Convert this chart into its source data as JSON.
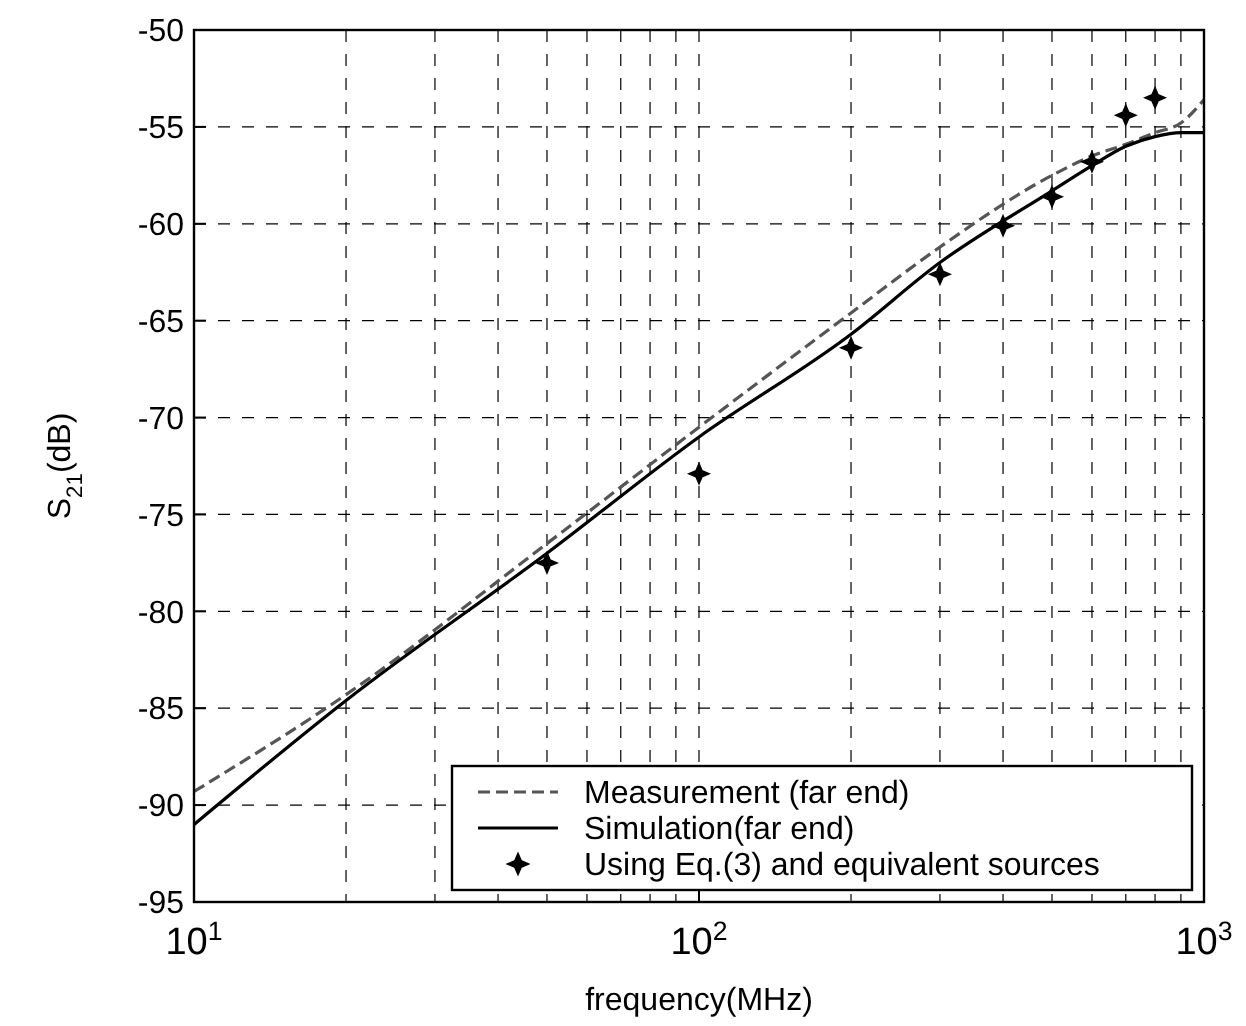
{
  "chart_data": {
    "type": "line",
    "xlabel": "frequency(MHz)",
    "ylabel": "S$_{21}$(dB)",
    "log": "x",
    "grid": true,
    "legend": "bottom right",
    "xlim": [
      10,
      1000
    ],
    "xticks": [
      {
        "value": 10,
        "label": "10$^{1}$"
      },
      {
        "value": 100,
        "label": "10$^{2}$"
      },
      {
        "value": 1000,
        "label": "10$^{3}$"
      }
    ],
    "ylim": [
      -95,
      -50
    ],
    "yticks": [
      -95,
      -90,
      -85,
      -80,
      -75,
      -70,
      -65,
      -60,
      -55,
      -50
    ],
    "series": [
      {
        "name": "Measurement (far end)",
        "color": "#555555",
        "line_style": "dashed",
        "marker": "none",
        "x": [
          10,
          20,
          50,
          100,
          200,
          300,
          500,
          600,
          700,
          800,
          900,
          1000
        ],
        "values": [
          -89.3,
          -84.3,
          -76.5,
          -70.5,
          -64.6,
          -61.2,
          -57.5,
          -56.5,
          -55.9,
          -55.3,
          -54.8,
          -53.6
        ]
      },
      {
        "name": "Simulation(far end)",
        "color": "#000000",
        "line_style": "solid",
        "marker": "none",
        "x": [
          10,
          20,
          50,
          100,
          200,
          300,
          500,
          600,
          700,
          800,
          900,
          1000
        ],
        "values": [
          -91,
          -84.6,
          -77,
          -71,
          -65.7,
          -62,
          -58.3,
          -57,
          -56,
          -55.5,
          -55.3,
          -55.3
        ]
      },
      {
        "name": "Using Eq.(3) and equivalent sources",
        "type": "scatter",
        "color": "#000000",
        "marker": "star",
        "x": [
          50,
          100,
          200,
          300,
          400,
          500,
          600,
          700,
          800
        ],
        "values": [
          -77.5,
          -72.9,
          -66.4,
          -62.6,
          -60.1,
          -58.6,
          -56.8,
          -54.4,
          -53.5
        ]
      }
    ]
  }
}
